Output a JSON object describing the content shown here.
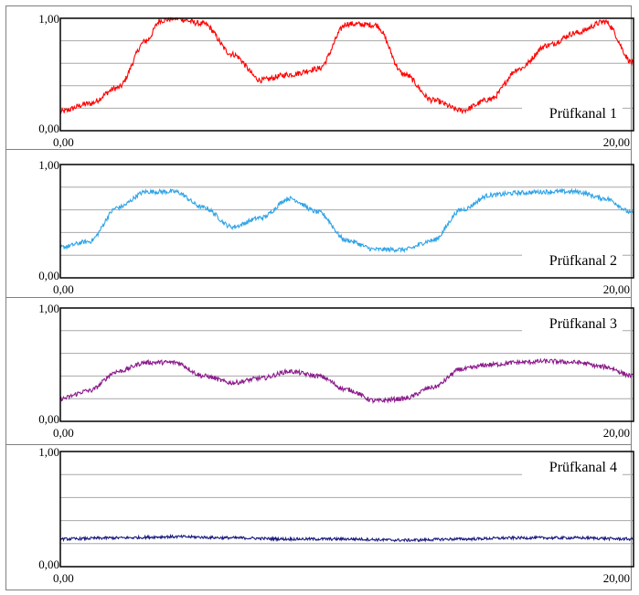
{
  "chart_data": [
    {
      "type": "line",
      "series": [
        {
          "name": "Prüfkanal 1",
          "color": "#ff0000",
          "x": [
            0,
            1,
            2,
            3,
            3.5,
            4,
            5,
            6,
            7,
            8,
            9,
            10,
            11,
            12,
            13,
            14,
            15,
            16,
            17,
            18,
            19,
            20
          ],
          "values": [
            0.17,
            0.24,
            0.38,
            0.8,
            0.98,
            1.0,
            0.95,
            0.68,
            0.45,
            0.5,
            0.55,
            0.95,
            0.94,
            0.5,
            0.27,
            0.18,
            0.28,
            0.55,
            0.76,
            0.87,
            0.97,
            0.6
          ]
        }
      ],
      "xlim": [
        0,
        20
      ],
      "ylim": [
        0,
        1
      ],
      "x_tick_labels": [
        "0,00",
        "20,00"
      ],
      "y_tick_labels": [
        "0,00",
        "1,00"
      ],
      "grid": "horizontal",
      "label": "Prüfkanal 1",
      "label_position": "bottom-right"
    },
    {
      "type": "line",
      "series": [
        {
          "name": "Prüfkanal 2",
          "color": "#2fa3e6",
          "x": [
            0,
            1,
            2,
            3,
            4,
            5,
            6,
            7,
            8,
            9,
            10,
            11,
            12,
            13,
            14,
            15,
            16,
            17,
            18,
            19,
            20
          ],
          "values": [
            0.27,
            0.32,
            0.62,
            0.76,
            0.76,
            0.62,
            0.45,
            0.53,
            0.7,
            0.58,
            0.33,
            0.25,
            0.25,
            0.33,
            0.6,
            0.73,
            0.75,
            0.76,
            0.76,
            0.7,
            0.57
          ]
        }
      ],
      "xlim": [
        0,
        20
      ],
      "ylim": [
        0,
        1
      ],
      "x_tick_labels": [
        "0,00",
        "20,00"
      ],
      "y_tick_labels": [
        "0,00",
        "1,00"
      ],
      "grid": "horizontal",
      "label": "Prüfkanal 2",
      "label_position": "bottom-right"
    },
    {
      "type": "line",
      "series": [
        {
          "name": "Prüfkanal 3",
          "color": "#8b1a8b",
          "x": [
            0,
            1,
            2,
            3,
            4,
            5,
            6,
            7,
            8,
            9,
            10,
            11,
            12,
            13,
            14,
            15,
            16,
            17,
            18,
            19,
            20
          ],
          "values": [
            0.2,
            0.27,
            0.44,
            0.52,
            0.52,
            0.4,
            0.34,
            0.38,
            0.44,
            0.4,
            0.28,
            0.18,
            0.2,
            0.3,
            0.46,
            0.5,
            0.52,
            0.53,
            0.52,
            0.48,
            0.4
          ]
        }
      ],
      "xlim": [
        0,
        20
      ],
      "ylim": [
        0,
        1
      ],
      "x_tick_labels": [
        "0,00",
        "20,00"
      ],
      "y_tick_labels": [
        "0,00",
        "1,00"
      ],
      "grid": "horizontal",
      "label": "Prüfkanal 3",
      "label_position": "top-right"
    },
    {
      "type": "line",
      "series": [
        {
          "name": "Prüfkanal 4",
          "color": "#1a1a80",
          "x": [
            0,
            2,
            4,
            6,
            8,
            10,
            12,
            14,
            16,
            18,
            20
          ],
          "values": [
            0.24,
            0.25,
            0.26,
            0.25,
            0.24,
            0.24,
            0.23,
            0.24,
            0.25,
            0.25,
            0.24
          ]
        }
      ],
      "xlim": [
        0,
        20
      ],
      "ylim": [
        0,
        1
      ],
      "x_tick_labels": [
        "0,00",
        "20,00"
      ],
      "y_tick_labels": [
        "0,00",
        "1,00"
      ],
      "grid": "horizontal",
      "label": "Prüfkanal 4",
      "label_position": "top-right"
    }
  ]
}
